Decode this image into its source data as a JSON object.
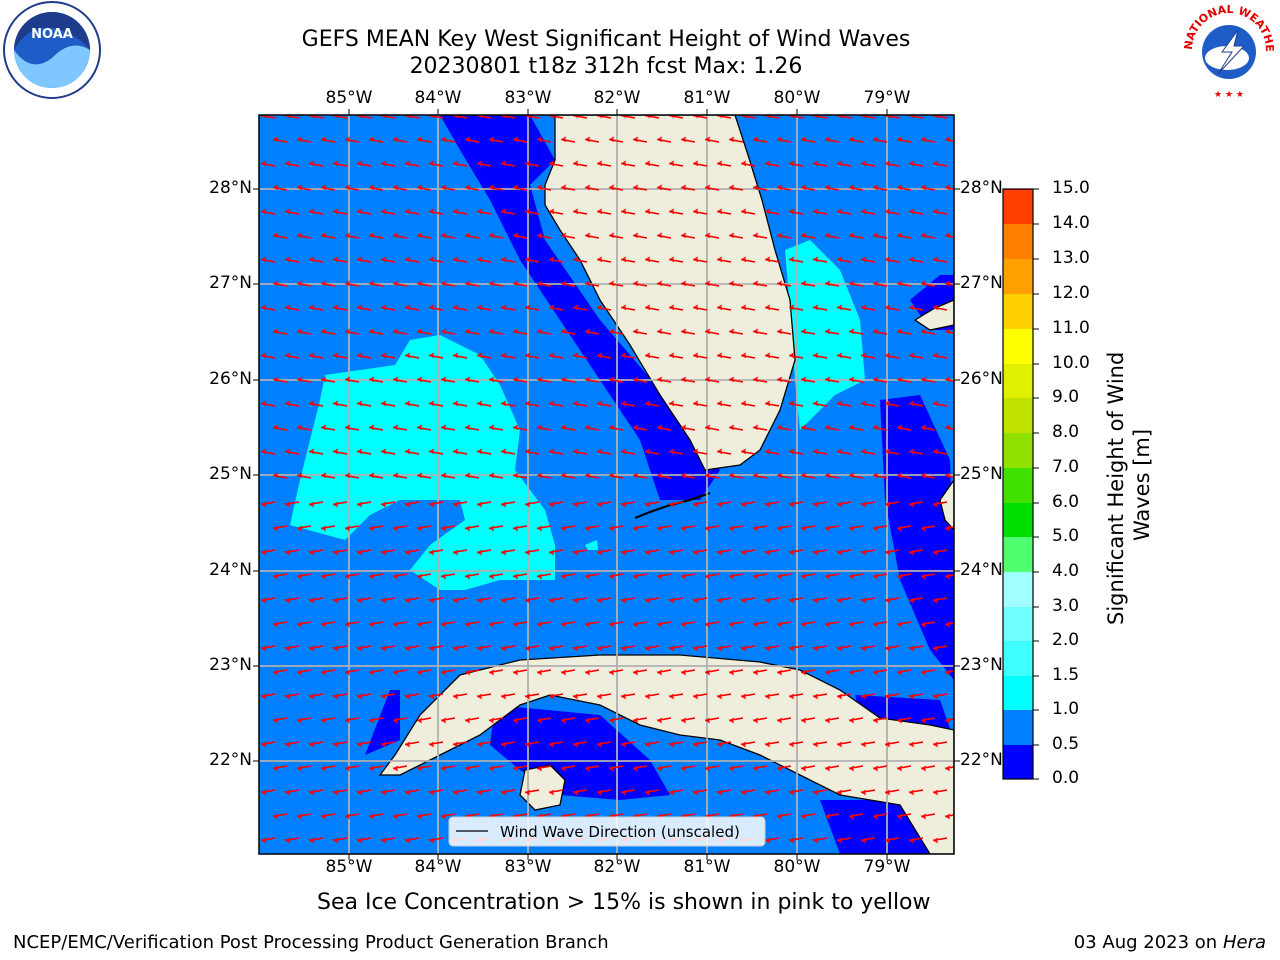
{
  "title_line1": "GEFS MEAN Key West Significant Height of Wind Waves",
  "title_line2": "20230801 t18z 312h fcst   Max: 1.26",
  "lon_labels": [
    "85°W",
    "84°W",
    "83°W",
    "82°W",
    "81°W",
    "80°W",
    "79°W"
  ],
  "lat_labels": [
    "28°N",
    "27°N",
    "26°N",
    "25°N",
    "24°N",
    "23°N",
    "22°N"
  ],
  "legend_label": "Wind Wave Direction (unscaled)",
  "colorbar": {
    "label": "Significant Height of Wind Waves [m]",
    "ticks": [
      "15.0",
      "14.0",
      "13.0",
      "12.0",
      "11.0",
      "10.0",
      "9.0",
      "8.0",
      "7.0",
      "6.0",
      "5.0",
      "4.0",
      "3.0",
      "2.0",
      "1.5",
      "1.0",
      "0.5",
      "0.0"
    ],
    "colors": [
      "#0000ff",
      "#0080ff",
      "#00ffff",
      "#40ffff",
      "#70ffff",
      "#a0ffff",
      "#50ff70",
      "#00e000",
      "#40e000",
      "#90e000",
      "#c0e000",
      "#e0f000",
      "#ffff00",
      "#ffd000",
      "#ffa000",
      "#ff8000",
      "#ff4000",
      "#ff2000",
      "#ff0000"
    ]
  },
  "colors": {
    "land": "#efeedc",
    "ocean_0_05": "#0000ff",
    "ocean_05_10": "#0080ff",
    "ocean_10_15": "#00ffff",
    "arrow": "#ff0000",
    "grid": "#b0b0b0"
  },
  "ice_note": "Sea Ice Concentration > 15% is shown in pink to yellow",
  "footer_left": "NCEP/EMC/Verification Post Processing Product Generation Branch",
  "footer_right_date": "03 Aug 2023 on",
  "footer_right_machine": "Hera",
  "logos": {
    "left": "NOAA",
    "right_text": "NATIONAL WEATHER SERVICE"
  }
}
